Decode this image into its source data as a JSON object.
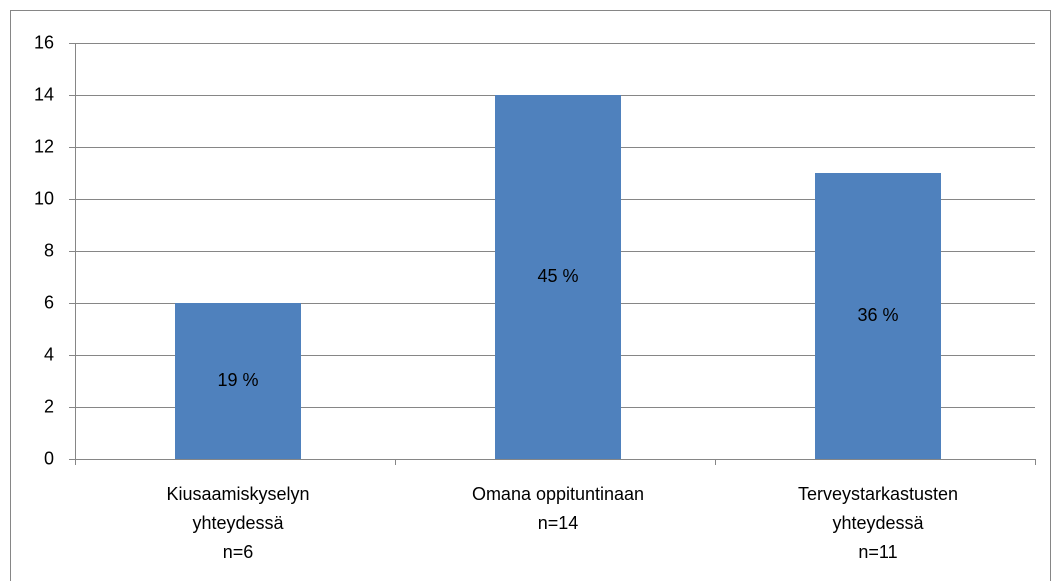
{
  "chart_data": {
    "type": "bar",
    "categories": [
      [
        "Kiusaamiskyselyn",
        "yhteydessä",
        "n=6"
      ],
      [
        "Omana oppituntinaan",
        "n=14"
      ],
      [
        "Terveystarkastusten",
        "yhteydessä",
        "n=11"
      ]
    ],
    "values": [
      6,
      14,
      11
    ],
    "annotations": [
      "19 %",
      "45 %",
      "36 %"
    ],
    "color": "#4f81bd",
    "ylim": [
      0,
      16
    ],
    "yticks": [
      0,
      2,
      4,
      6,
      8,
      10,
      12,
      14,
      16
    ],
    "grid": true
  }
}
